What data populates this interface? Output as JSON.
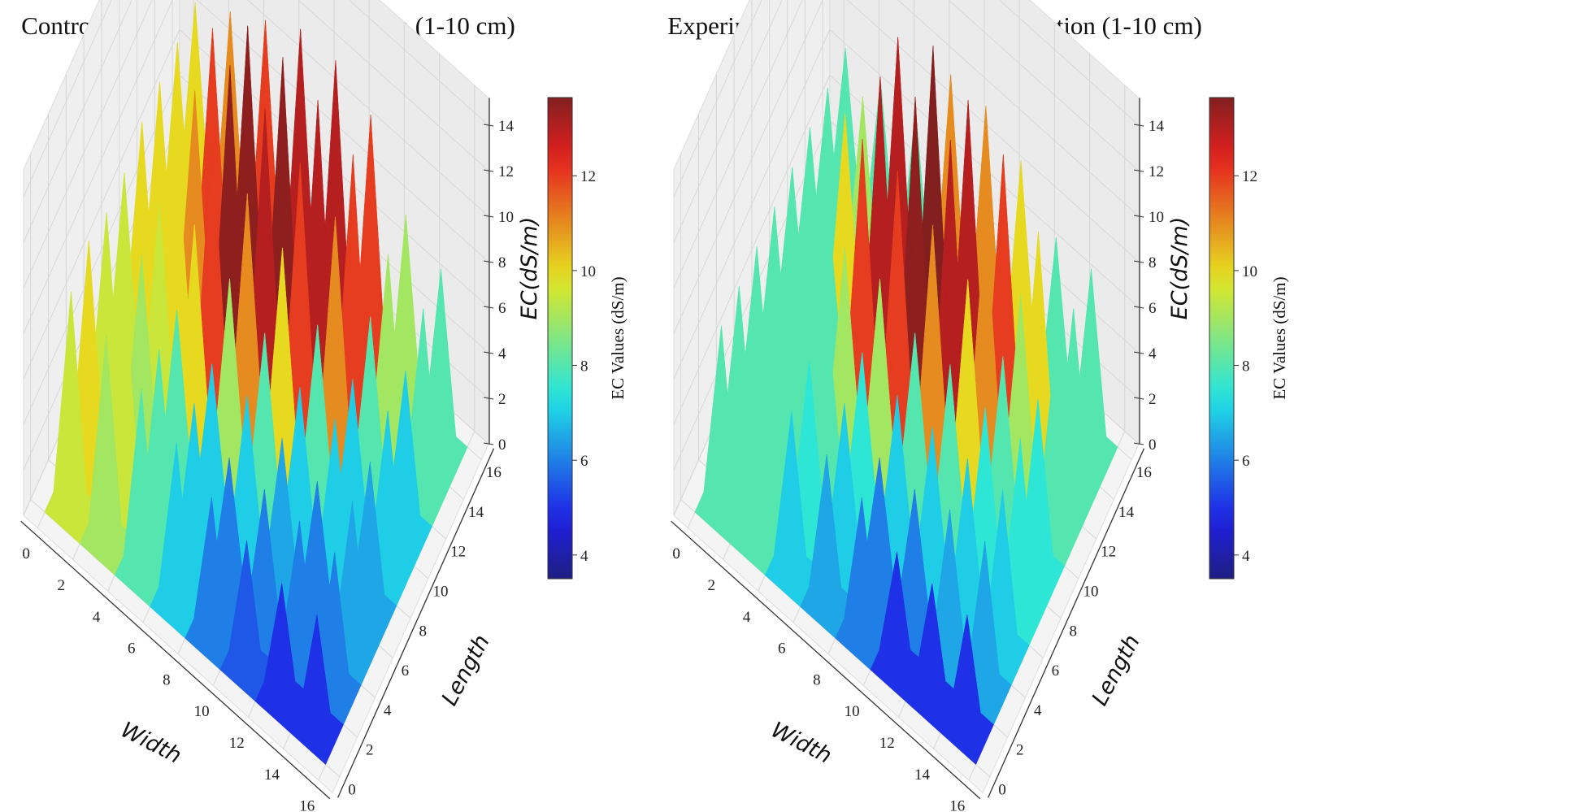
{
  "chart_data": [
    {
      "type": "surface3d",
      "title": "Control area after leaching application (1-10 cm)",
      "xlabel": "Width",
      "ylabel": "Length",
      "zlabel": "EC(dS/m)",
      "colorbar_label": "EC Values (dS/m)",
      "colormap": "jet",
      "color_range": [
        3.5,
        13.65
      ],
      "x_ticks": [
        "0",
        "2",
        "4",
        "6",
        "8",
        "10",
        "12",
        "14",
        "16"
      ],
      "y_ticks": [
        "0",
        "2",
        "4",
        "6",
        "8",
        "10",
        "12",
        "14",
        "16"
      ],
      "z_ticks": [
        "0",
        "2",
        "4",
        "6",
        "8",
        "10",
        "12",
        "14"
      ],
      "colorbar_ticks": [
        "4",
        "6",
        "8",
        "10",
        "12"
      ],
      "xlim": [
        0,
        16
      ],
      "ylim": [
        0,
        16
      ],
      "zlim": [
        0,
        14
      ],
      "grid": true,
      "peak_x": [
        1,
        3,
        5,
        7,
        9,
        11,
        13,
        15
      ],
      "peak_y": [
        1,
        3,
        5,
        7,
        9,
        11,
        13,
        15
      ],
      "peak_values_by_length": [
        [
          9.5,
          9,
          8,
          7,
          6,
          5.5,
          5,
          5
        ],
        [
          10,
          9.5,
          8,
          7,
          6,
          6,
          6,
          6
        ],
        [
          9.5,
          9,
          8,
          7,
          7,
          6.5,
          6,
          6.5
        ],
        [
          9.5,
          9.5,
          10,
          9,
          8,
          7,
          7,
          6.5
        ],
        [
          10,
          10,
          12,
          11,
          10,
          8,
          7,
          7
        ],
        [
          10,
          11,
          13.5,
          13,
          12,
          11,
          8,
          7
        ],
        [
          10,
          12,
          13.5,
          13.5,
          13,
          12,
          9,
          8
        ],
        [
          10,
          11,
          12,
          13,
          13,
          12,
          9,
          8
        ]
      ]
    },
    {
      "type": "surface3d",
      "title": "Experiment area after leaching application (1-10 cm)",
      "xlabel": "Width",
      "ylabel": "Length",
      "zlabel": "EC(dS/m)",
      "colorbar_label": "EC Values (dS/m)",
      "colormap": "jet",
      "color_range": [
        3.5,
        13.65
      ],
      "x_ticks": [
        "0",
        "2",
        "4",
        "6",
        "8",
        "10",
        "12",
        "14",
        "16"
      ],
      "y_ticks": [
        "0",
        "2",
        "4",
        "6",
        "8",
        "10",
        "12",
        "14",
        "16"
      ],
      "z_ticks": [
        "0",
        "2",
        "4",
        "6",
        "8",
        "10",
        "12",
        "14"
      ],
      "colorbar_ticks": [
        "4",
        "6",
        "8",
        "10",
        "12"
      ],
      "xlim": [
        0,
        16
      ],
      "ylim": [
        0,
        16
      ],
      "zlim": [
        0,
        14
      ],
      "grid": true,
      "peak_x": [
        1,
        3,
        5,
        7,
        9,
        11,
        13,
        15
      ],
      "peak_y": [
        1,
        3,
        5,
        7,
        9,
        11,
        13,
        15
      ],
      "peak_values_by_length": [
        [
          8,
          8,
          7,
          6.5,
          6,
          5,
          5,
          5
        ],
        [
          8,
          8,
          7.5,
          7,
          6,
          6,
          6.5,
          6.5
        ],
        [
          8,
          8,
          8,
          7.5,
          7,
          7,
          7,
          7
        ],
        [
          8,
          8,
          9,
          9,
          8,
          8,
          7.5,
          7.5
        ],
        [
          8,
          8,
          12,
          12,
          11,
          10,
          8,
          7.5
        ],
        [
          8,
          10,
          13,
          13.5,
          13,
          11,
          9,
          8
        ],
        [
          8,
          9,
          13,
          14,
          13,
          12,
          10,
          8
        ],
        [
          8,
          8,
          8,
          11,
          11,
          10,
          8,
          8
        ]
      ]
    }
  ]
}
